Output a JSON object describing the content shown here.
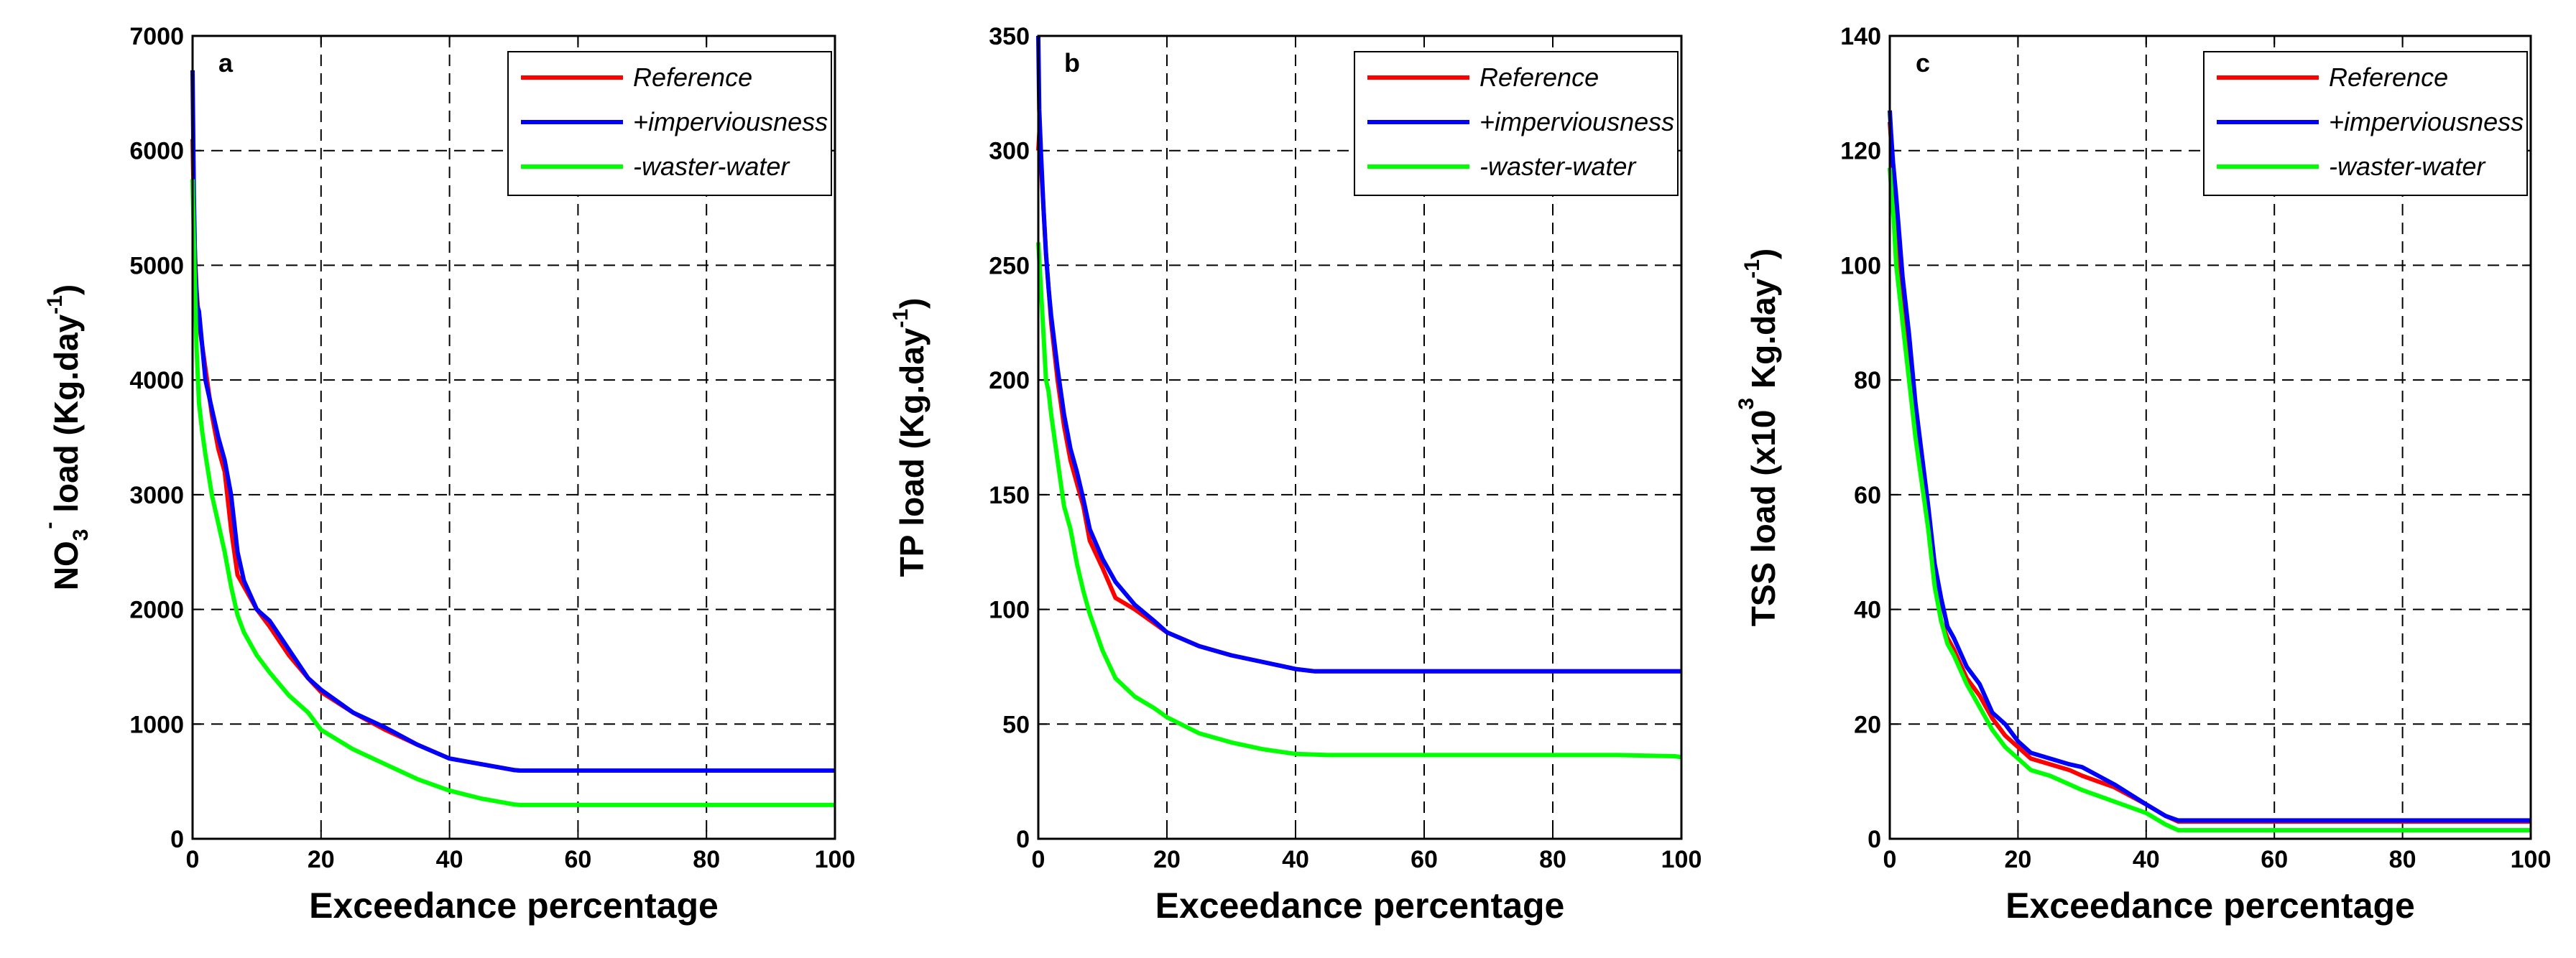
{
  "figure": {
    "panels": 3
  },
  "colors": {
    "reference": "#ff0000",
    "imperviousness": "#0000ff",
    "wastewater": "#00ff00",
    "axis": "#000000",
    "grid": "#000000"
  },
  "chart_data": [
    {
      "type": "line",
      "panel_label": "a",
      "xlabel": "Exceedance percentage",
      "ylabel_parts": {
        "pre": "NO",
        "sub": "3",
        "sup1": "-",
        "mid": " load (Kg.day",
        "sup2": "-1",
        "post": ")"
      },
      "xlim": [
        0,
        100
      ],
      "ylim": [
        0,
        7000
      ],
      "xticks": [
        0,
        20,
        40,
        60,
        80,
        100
      ],
      "yticks": [
        0,
        1000,
        2000,
        3000,
        4000,
        5000,
        6000,
        7000
      ],
      "grid": true,
      "legend_position": "top-right",
      "series": [
        {
          "name": "Reference",
          "color": "#ff0000",
          "x": [
            0,
            0.3,
            0.6,
            1,
            1.5,
            2,
            2.5,
            3,
            4,
            5,
            6,
            7,
            8,
            10,
            12,
            15,
            18,
            20,
            25,
            30,
            35,
            40,
            45,
            50,
            51,
            60,
            70,
            80,
            90,
            100
          ],
          "y": [
            6100,
            5200,
            4800,
            4500,
            4300,
            4100,
            3900,
            3700,
            3400,
            3200,
            2700,
            2300,
            2200,
            2000,
            1850,
            1600,
            1400,
            1280,
            1100,
            950,
            820,
            700,
            650,
            600,
            595,
            595,
            595,
            595,
            595,
            595
          ]
        },
        {
          "name": "+imperviousness",
          "color": "#0000ff",
          "x": [
            0,
            0.2,
            0.4,
            0.7,
            1,
            1.5,
            2,
            3,
            4,
            5,
            6,
            7,
            8,
            10,
            12,
            15,
            18,
            20,
            25,
            30,
            35,
            40,
            45,
            50,
            51,
            60,
            70,
            80,
            90,
            100
          ],
          "y": [
            6700,
            5600,
            5000,
            4650,
            4600,
            4300,
            4000,
            3750,
            3500,
            3300,
            3000,
            2500,
            2250,
            2000,
            1900,
            1650,
            1400,
            1300,
            1100,
            970,
            820,
            700,
            650,
            600,
            595,
            595,
            595,
            595,
            595,
            595
          ]
        },
        {
          "name": "-waster-water",
          "color": "#00ff00",
          "x": [
            0,
            0.3,
            0.6,
            1,
            1.5,
            2,
            3,
            4,
            5,
            6,
            7,
            8,
            10,
            12,
            15,
            18,
            20,
            25,
            30,
            35,
            40,
            45,
            50,
            51,
            60,
            70,
            80,
            90,
            100
          ],
          "y": [
            5750,
            5000,
            4300,
            3800,
            3550,
            3350,
            3000,
            2750,
            2500,
            2200,
            1950,
            1800,
            1600,
            1450,
            1250,
            1100,
            950,
            780,
            650,
            520,
            420,
            350,
            300,
            295,
            295,
            295,
            295,
            295,
            295
          ]
        }
      ]
    },
    {
      "type": "line",
      "panel_label": "b",
      "xlabel": "Exceedance percentage",
      "ylabel_parts": {
        "pre": "TP",
        "sub": "",
        "sup1": "",
        "mid": " load (Kg.day",
        "sup2": "-1",
        "post": ")"
      },
      "xlim": [
        0,
        100
      ],
      "ylim": [
        0,
        350
      ],
      "xticks": [
        0,
        20,
        40,
        60,
        80,
        100
      ],
      "yticks": [
        0,
        50,
        100,
        150,
        200,
        250,
        300,
        350
      ],
      "grid": true,
      "legend_position": "top-right",
      "series": [
        {
          "name": "Reference",
          "color": "#ff0000",
          "x": [
            0,
            0.2,
            0.5,
            0.8,
            1.2,
            1.6,
            2,
            3,
            4,
            5,
            6,
            7,
            8,
            10,
            12,
            15,
            18,
            20,
            25,
            30,
            35,
            40,
            43,
            50,
            60,
            70,
            80,
            90,
            100
          ],
          "y": [
            300,
            310,
            290,
            275,
            255,
            240,
            225,
            200,
            180,
            165,
            155,
            145,
            130,
            118,
            105,
            100,
            94,
            90,
            84,
            80,
            77,
            74,
            73,
            73,
            73,
            73,
            73,
            73,
            73
          ]
        },
        {
          "name": "+imperviousness",
          "color": "#0000ff",
          "x": [
            0,
            0.15,
            0.4,
            0.8,
            1.2,
            1.6,
            2,
            3,
            4,
            5,
            6,
            7,
            8,
            10,
            12,
            15,
            18,
            20,
            25,
            30,
            35,
            40,
            43,
            50,
            60,
            70,
            80,
            90,
            100
          ],
          "y": [
            350,
            318,
            300,
            275,
            255,
            240,
            228,
            205,
            185,
            170,
            160,
            148,
            135,
            122,
            112,
            102,
            95,
            90,
            84,
            80,
            77,
            74,
            73,
            73,
            73,
            73,
            73,
            73,
            73
          ]
        },
        {
          "name": "-waster-water",
          "color": "#00ff00",
          "x": [
            0,
            0.2,
            0.5,
            0.8,
            1.2,
            1.6,
            2,
            3,
            4,
            5,
            6,
            7,
            8,
            10,
            12,
            15,
            18,
            20,
            25,
            30,
            35,
            40,
            45,
            50,
            60,
            70,
            80,
            90,
            99,
            100
          ],
          "y": [
            260,
            250,
            235,
            220,
            200,
            195,
            185,
            165,
            145,
            135,
            120,
            108,
            98,
            82,
            70,
            62,
            57,
            53,
            46,
            42,
            39,
            37,
            36.5,
            36.5,
            36.5,
            36.5,
            36.5,
            36.5,
            36,
            35.5
          ]
        }
      ]
    },
    {
      "type": "line",
      "panel_label": "c",
      "xlabel": "Exceedance percentage",
      "ylabel_parts": {
        "pre": "TSS load (x10",
        "sub": "",
        "sup1": "3",
        "mid": " Kg.day",
        "sup2": "-1",
        "post": ")"
      },
      "xlim": [
        0,
        100
      ],
      "ylim": [
        0,
        140
      ],
      "xticks": [
        0,
        20,
        40,
        60,
        80,
        100
      ],
      "yticks": [
        0,
        20,
        40,
        60,
        80,
        100,
        120,
        140
      ],
      "grid": true,
      "legend_position": "top-right",
      "series": [
        {
          "name": "Reference",
          "color": "#ff0000",
          "x": [
            0,
            0.3,
            0.6,
            1,
            1.5,
            2,
            3,
            4,
            5,
            6,
            7,
            8,
            9,
            10,
            12,
            14,
            16,
            18,
            20,
            22,
            25,
            28,
            30,
            35,
            40,
            43,
            45,
            50,
            60,
            70,
            80,
            90,
            100
          ],
          "y": [
            125,
            120,
            110,
            105,
            100,
            95,
            85,
            75,
            65,
            56,
            45,
            38,
            35,
            33,
            28,
            25,
            21,
            18,
            16,
            14,
            13,
            12,
            11,
            9,
            6,
            4,
            3,
            3,
            3,
            3,
            3,
            3,
            3
          ]
        },
        {
          "name": "+imperviousness",
          "color": "#0000ff",
          "x": [
            0,
            0.2,
            0.5,
            1,
            1.5,
            2,
            3,
            4,
            5,
            6,
            7,
            8,
            9,
            10,
            12,
            14,
            16,
            18,
            20,
            22,
            25,
            28,
            30,
            35,
            40,
            43,
            45,
            50,
            60,
            70,
            80,
            90,
            100
          ],
          "y": [
            127,
            123,
            118,
            112,
            105,
            98,
            88,
            76,
            67,
            58,
            48,
            42,
            37,
            35,
            30,
            27,
            22,
            20,
            17,
            15,
            14,
            13,
            12.5,
            9.5,
            6,
            4,
            3.2,
            3.2,
            3.2,
            3.2,
            3.2,
            3.2,
            3.2
          ]
        },
        {
          "name": "-waster-water",
          "color": "#00ff00",
          "x": [
            0,
            0.3,
            0.6,
            1,
            1.5,
            2,
            3,
            4,
            5,
            6,
            7,
            8,
            9,
            10,
            12,
            14,
            16,
            18,
            20,
            22,
            25,
            28,
            30,
            35,
            40,
            43,
            45,
            50,
            60,
            70,
            80,
            90,
            100
          ],
          "y": [
            117,
            112,
            108,
            100,
            95,
            90,
            80,
            70,
            62,
            54,
            44,
            38,
            34,
            32,
            27,
            23,
            19,
            16,
            14,
            12,
            11,
            9.5,
            8.5,
            6.5,
            4.5,
            2.5,
            1.5,
            1.5,
            1.5,
            1.5,
            1.5,
            1.5,
            1.5
          ]
        }
      ]
    }
  ]
}
